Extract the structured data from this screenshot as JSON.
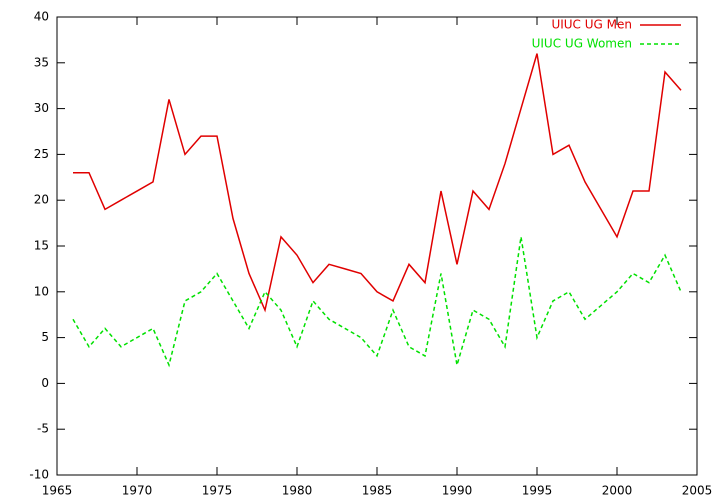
{
  "chart_data": {
    "type": "line",
    "x": [
      1966,
      1967,
      1968,
      1969,
      1970,
      1971,
      1972,
      1973,
      1974,
      1975,
      1976,
      1977,
      1978,
      1979,
      1980,
      1981,
      1982,
      1983,
      1984,
      1985,
      1986,
      1987,
      1988,
      1989,
      1990,
      1991,
      1992,
      1993,
      1994,
      1995,
      1996,
      1997,
      1998,
      1999,
      2000,
      2001,
      2002,
      2003,
      2004
    ],
    "series": [
      {
        "name": "UIUC UG Men",
        "color": "#e00000",
        "dash": false,
        "values": [
          23,
          23,
          19,
          20,
          21,
          22,
          31,
          25,
          27,
          27,
          18,
          12,
          8,
          16,
          14,
          11,
          13,
          12.5,
          12,
          10,
          9,
          13,
          11,
          21,
          13,
          21,
          19,
          24,
          30,
          36,
          25,
          26,
          22,
          19,
          16,
          21,
          21,
          34,
          32
        ]
      },
      {
        "name": "UIUC UG Women",
        "color": "#00e000",
        "dash": true,
        "values": [
          7,
          4,
          6,
          4,
          5,
          6,
          2,
          9,
          10,
          12,
          9,
          6,
          10,
          8,
          4,
          9,
          7,
          6,
          5,
          3,
          8,
          4,
          3,
          12,
          2,
          8,
          7,
          4,
          16,
          5,
          9,
          10,
          7,
          8.5,
          10,
          12,
          11,
          14,
          10
        ]
      }
    ],
    "xlim": [
      1965,
      2005
    ],
    "xticks": [
      1965,
      1970,
      1975,
      1980,
      1985,
      1990,
      1995,
      2000,
      2005
    ],
    "ylim": [
      -10,
      40
    ],
    "yticks": [
      -10,
      -5,
      0,
      5,
      10,
      15,
      20,
      25,
      30,
      35,
      40
    ],
    "legend": "top-right"
  }
}
